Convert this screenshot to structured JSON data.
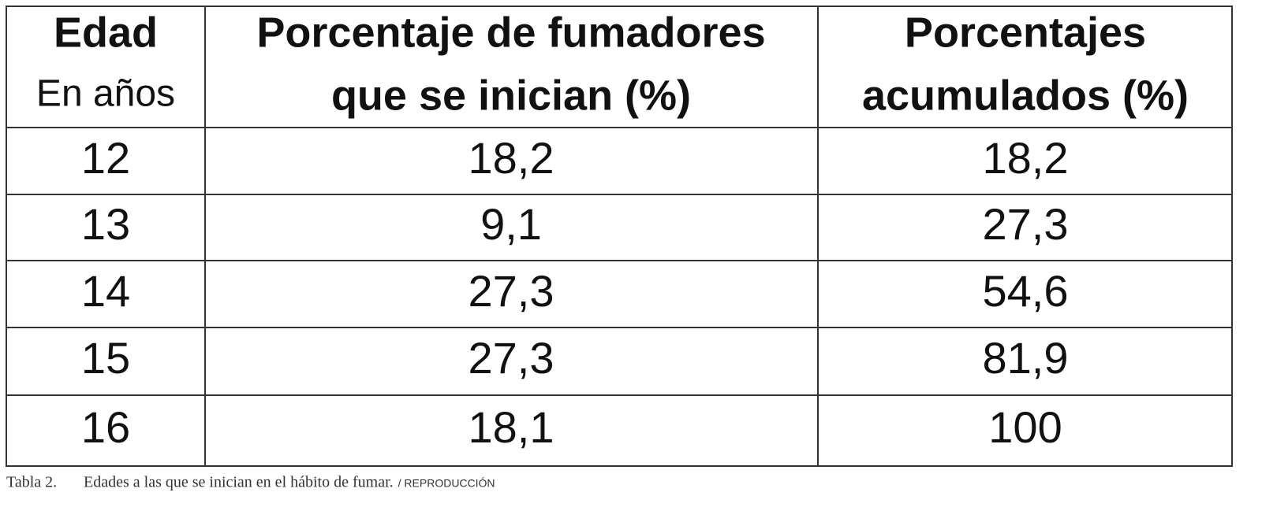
{
  "table": {
    "header": [
      {
        "title": "Edad",
        "subtitle": "En años"
      },
      {
        "lines": [
          "Porcentaje de fumadores",
          "que se inician (%)"
        ]
      },
      {
        "lines": [
          "Porcentajes",
          "acumulados (%)"
        ]
      }
    ],
    "rows": [
      [
        "12",
        "18,2",
        "18,2"
      ],
      [
        "13",
        "9,1",
        "27,3"
      ],
      [
        "14",
        "27,3",
        "54,6"
      ],
      [
        "15",
        "27,3",
        "81,9"
      ],
      [
        "16",
        "18,1",
        "100"
      ]
    ]
  },
  "caption": {
    "label": "Tabla 2.",
    "text": "Edades a las que se inician en el hábito de fumar.",
    "credit": "/ REPRODUCCIÓN"
  }
}
